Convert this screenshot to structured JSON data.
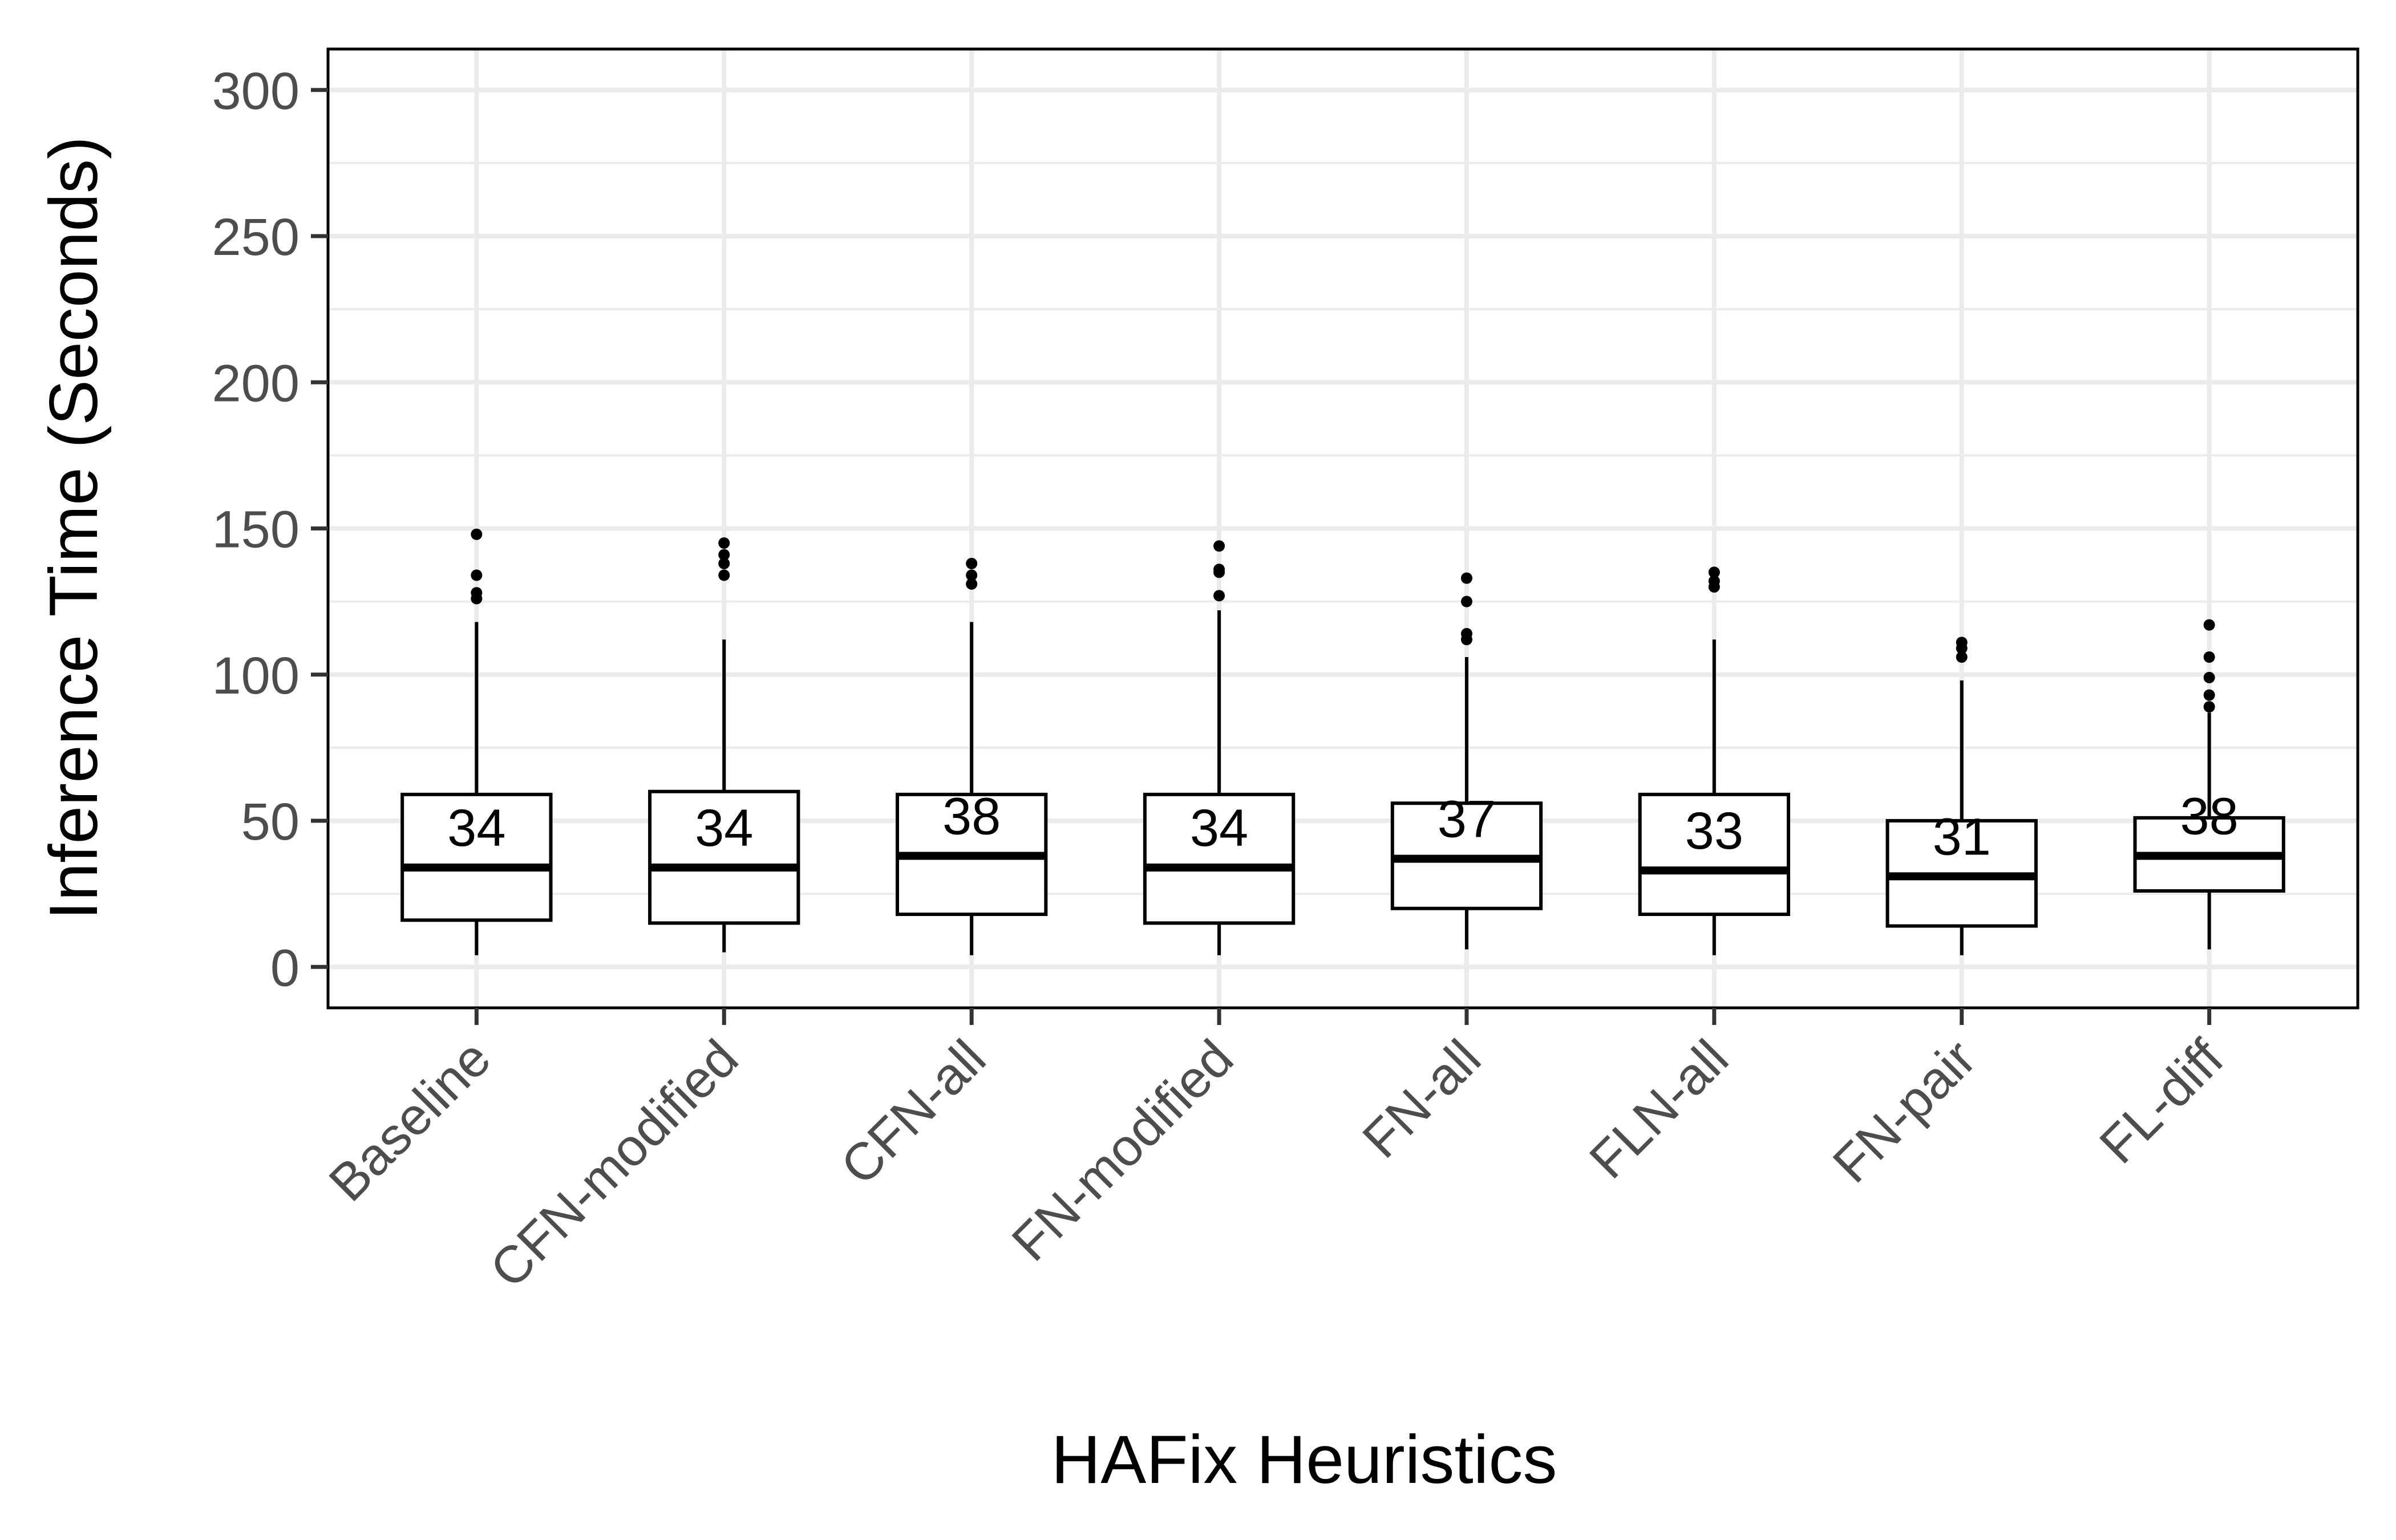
{
  "chart_data": {
    "type": "box",
    "title": "",
    "xlabel": "HAFix Heuristics",
    "ylabel": "Inference Time (Seconds)",
    "ylim": [
      -14,
      314
    ],
    "yticks": [
      0,
      50,
      100,
      150,
      200,
      250,
      300
    ],
    "grid": true,
    "legend": "none",
    "colors": {
      "grid": "#ebebeb",
      "box_stroke": "#000000",
      "tick_label": "#4d4d4d",
      "tick_mark": "#333333"
    },
    "categories": [
      "Baseline",
      "CFN-modified",
      "CFN-all",
      "FN-modified",
      "FN-all",
      "FLN-all",
      "FN-pair",
      "FL-diff"
    ],
    "boxes": [
      {
        "category": "Baseline",
        "whisker_low": 4,
        "q1": 16,
        "median": 34,
        "q3": 59,
        "whisker_high": 118,
        "median_label": "34",
        "outliers": [
          126,
          128,
          134,
          148
        ]
      },
      {
        "category": "CFN-modified",
        "whisker_low": 5,
        "q1": 15,
        "median": 34,
        "q3": 60,
        "whisker_high": 112,
        "median_label": "34",
        "outliers": [
          134,
          138,
          141,
          145
        ]
      },
      {
        "category": "CFN-all",
        "whisker_low": 4,
        "q1": 18,
        "median": 38,
        "q3": 59,
        "whisker_high": 118,
        "median_label": "38",
        "outliers": [
          131,
          134,
          138
        ]
      },
      {
        "category": "FN-modified",
        "whisker_low": 4,
        "q1": 15,
        "median": 34,
        "q3": 59,
        "whisker_high": 122,
        "median_label": "34",
        "outliers": [
          127,
          135,
          136,
          144
        ]
      },
      {
        "category": "FN-all",
        "whisker_low": 6,
        "q1": 20,
        "median": 37,
        "q3": 56,
        "whisker_high": 106,
        "median_label": "37",
        "outliers": [
          112,
          114,
          125,
          133
        ]
      },
      {
        "category": "FLN-all",
        "whisker_low": 4,
        "q1": 18,
        "median": 33,
        "q3": 59,
        "whisker_high": 112,
        "median_label": "33",
        "outliers": [
          130,
          132,
          135
        ]
      },
      {
        "category": "FN-pair",
        "whisker_low": 4,
        "q1": 14,
        "median": 31,
        "q3": 50,
        "whisker_high": 98,
        "median_label": "31",
        "outliers": [
          106,
          109,
          111
        ]
      },
      {
        "category": "FL-diff",
        "whisker_low": 6,
        "q1": 26,
        "median": 38,
        "q3": 51,
        "whisker_high": 87,
        "median_label": "38",
        "outliers": [
          89,
          93,
          99,
          106,
          117
        ]
      }
    ]
  }
}
